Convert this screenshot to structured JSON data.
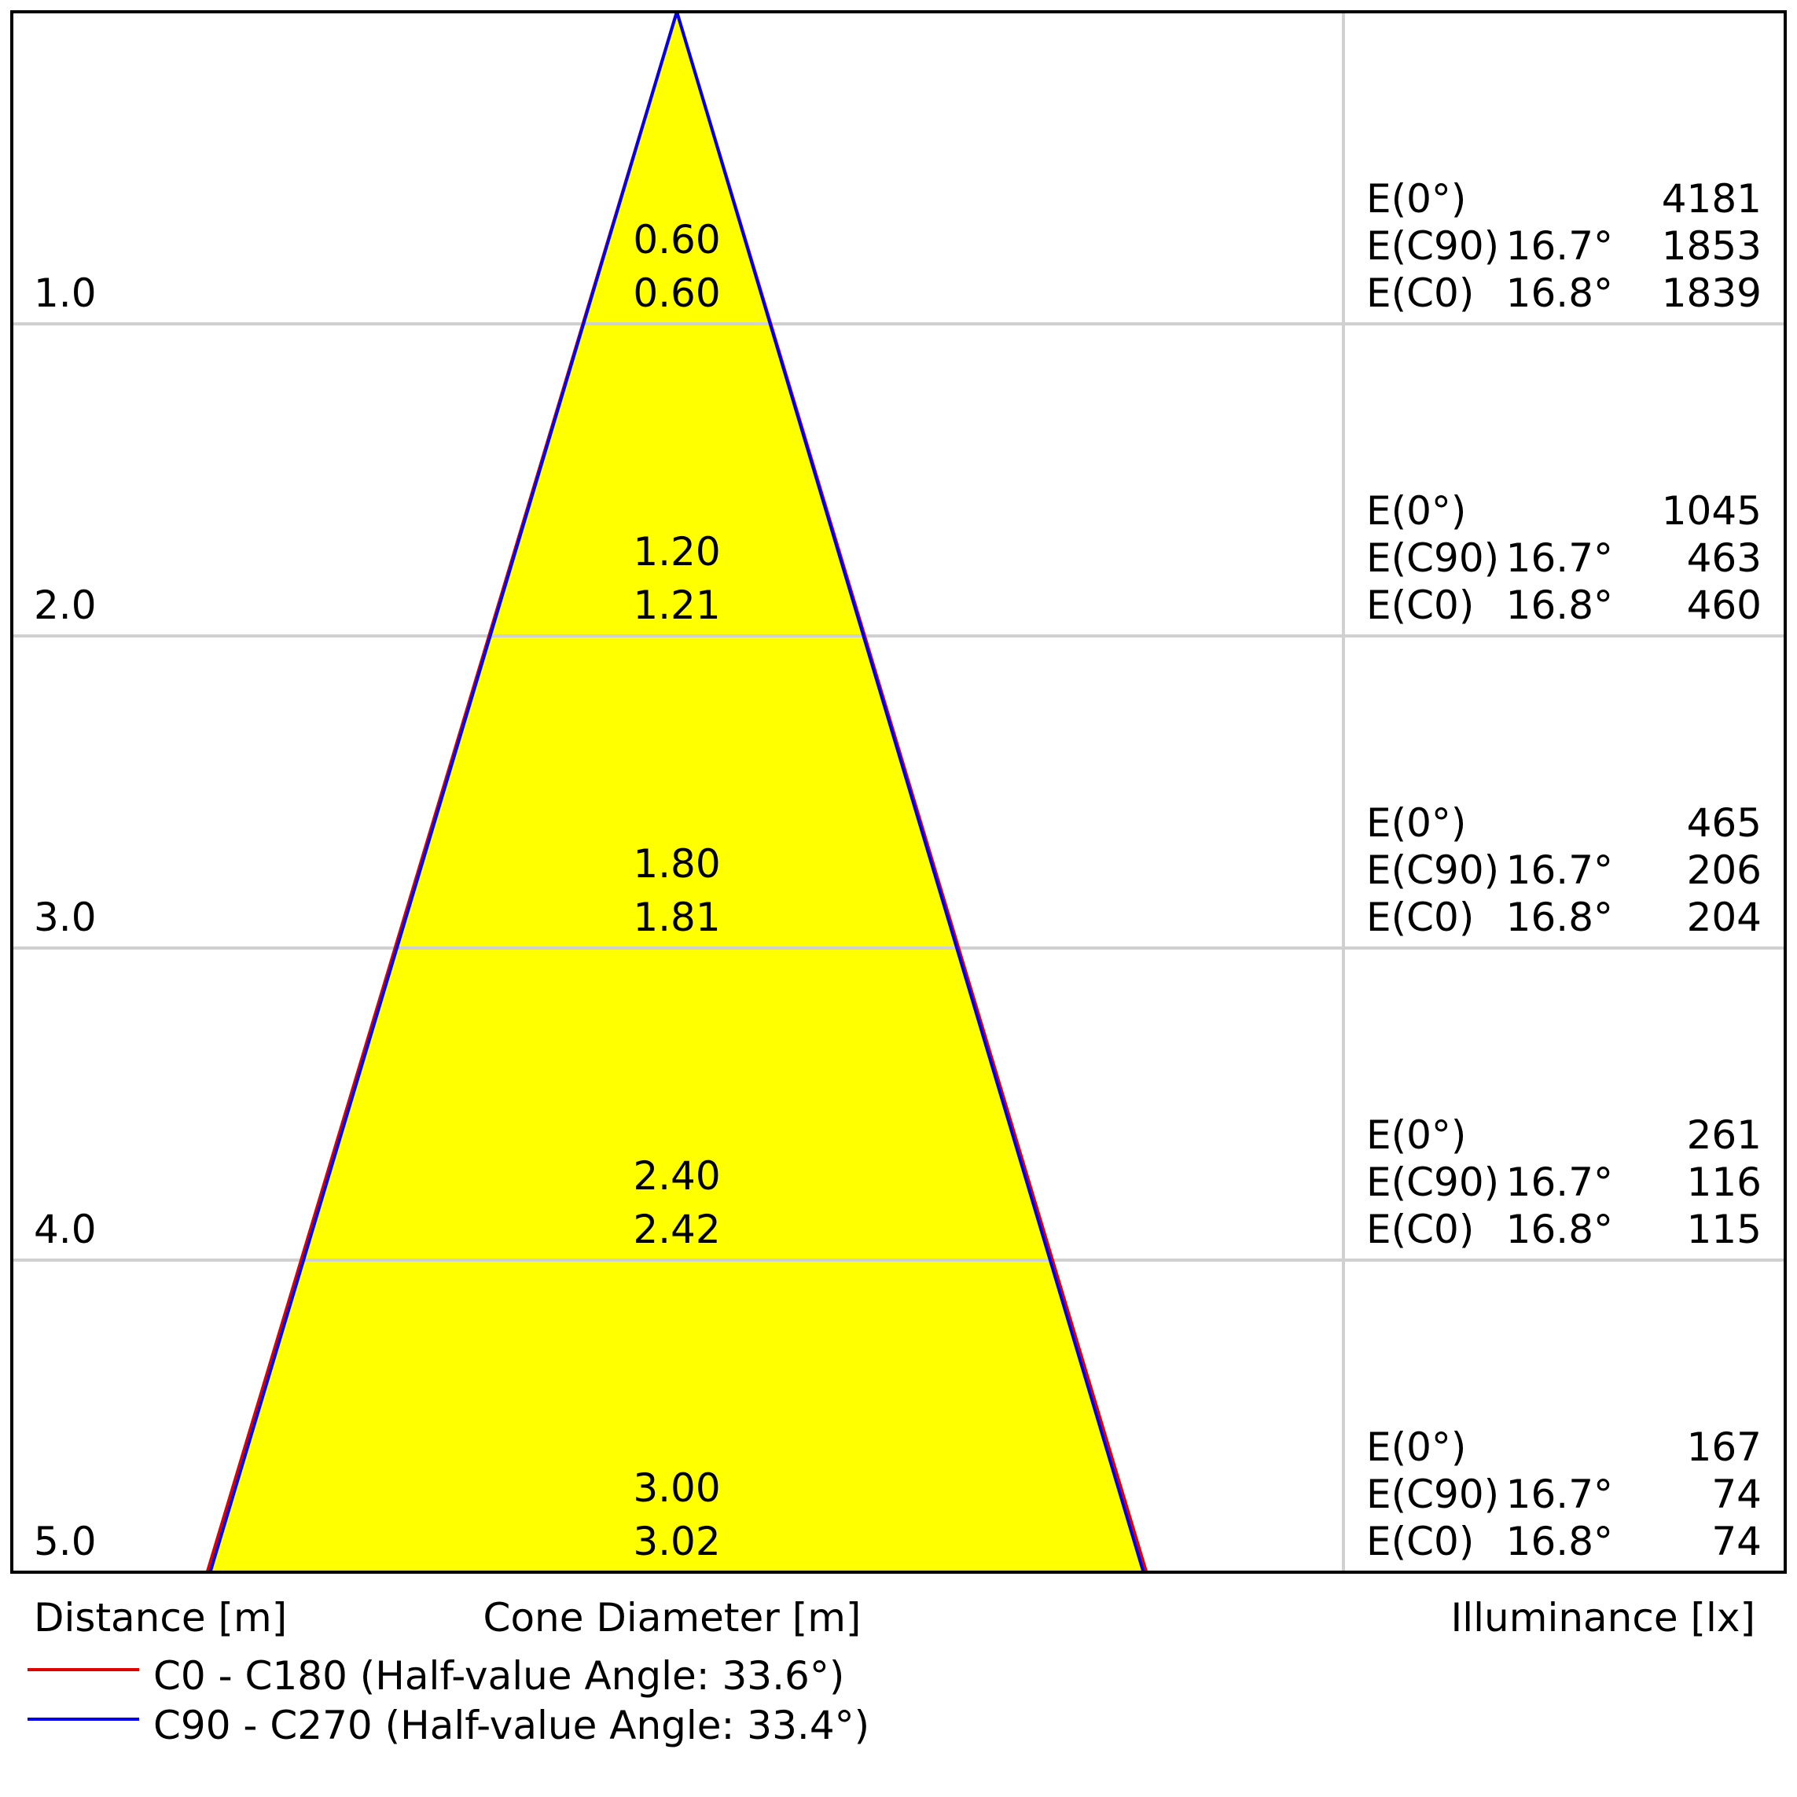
{
  "chart_data": {
    "type": "cone-diagram",
    "axis_labels": {
      "distance": "Distance [m]",
      "cone_diameter": "Cone Diameter [m]",
      "illuminance": "Illuminance [lx]"
    },
    "half_value_angles": [
      {
        "plane": "C0 - C180",
        "angle_deg": 33.6,
        "color": "#e00000"
      },
      {
        "plane": "C90 - C270",
        "angle_deg": 33.4,
        "color": "#0000ee"
      }
    ],
    "colors": {
      "cone_fill": "#ffff00",
      "grid": "#d0d0d0",
      "frame": "#000000"
    },
    "rows": [
      {
        "distance": "1.0",
        "diameter_c0": "0.60",
        "diameter_c90": "0.60",
        "illuminance": [
          {
            "label": "E(0°)",
            "angle": "",
            "value": "4181"
          },
          {
            "label": "E(C90)",
            "angle": "16.7°",
            "value": "1853"
          },
          {
            "label": "E(C0)",
            "angle": "16.8°",
            "value": "1839"
          }
        ]
      },
      {
        "distance": "2.0",
        "diameter_c0": "1.20",
        "diameter_c90": "1.21",
        "illuminance": [
          {
            "label": "E(0°)",
            "angle": "",
            "value": "1045"
          },
          {
            "label": "E(C90)",
            "angle": "16.7°",
            "value": "463"
          },
          {
            "label": "E(C0)",
            "angle": "16.8°",
            "value": "460"
          }
        ]
      },
      {
        "distance": "3.0",
        "diameter_c0": "1.80",
        "diameter_c90": "1.81",
        "illuminance": [
          {
            "label": "E(0°)",
            "angle": "",
            "value": "465"
          },
          {
            "label": "E(C90)",
            "angle": "16.7°",
            "value": "206"
          },
          {
            "label": "E(C0)",
            "angle": "16.8°",
            "value": "204"
          }
        ]
      },
      {
        "distance": "4.0",
        "diameter_c0": "2.40",
        "diameter_c90": "2.42",
        "illuminance": [
          {
            "label": "E(0°)",
            "angle": "",
            "value": "261"
          },
          {
            "label": "E(C90)",
            "angle": "16.7°",
            "value": "116"
          },
          {
            "label": "E(C0)",
            "angle": "16.8°",
            "value": "115"
          }
        ]
      },
      {
        "distance": "5.0",
        "diameter_c0": "3.00",
        "diameter_c90": "3.02",
        "illuminance": [
          {
            "label": "E(0°)",
            "angle": "",
            "value": "167"
          },
          {
            "label": "E(C90)",
            "angle": "16.7°",
            "value": "74"
          },
          {
            "label": "E(C0)",
            "angle": "16.8°",
            "value": "74"
          }
        ]
      }
    ],
    "legend": [
      {
        "label": "C0 - C180 (Half-value Angle: 33.6°)",
        "color": "#e00000"
      },
      {
        "label": "C90 - C270 (Half-value Angle: 33.4°)",
        "color": "#0000ee"
      }
    ]
  }
}
